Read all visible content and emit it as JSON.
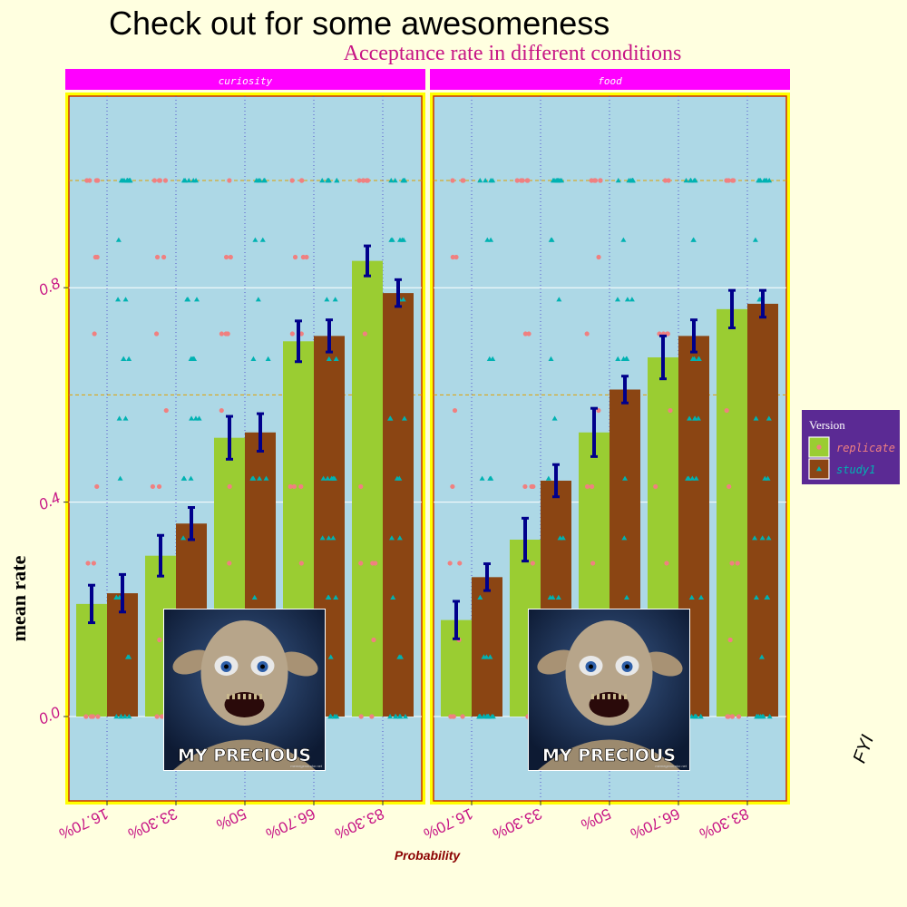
{
  "chart_data": {
    "type": "bar",
    "title": "Check out for some awesomeness",
    "subtitle": "Acceptance rate in different conditions",
    "xlabel": "Probability",
    "ylabel": "mean rate",
    "caption": "FYI",
    "categories": [
      "16.70%",
      "33.30%",
      "50%",
      "66.70%",
      "83.30%"
    ],
    "ylim": [
      -0.15,
      1.15
    ],
    "yticks": [
      0.0,
      0.4,
      0.8
    ],
    "ytick_labels": [
      "0.0",
      "0.4",
      "0.8"
    ],
    "legend": {
      "title": "Version",
      "position": "right",
      "entries": [
        "replicate",
        "study1"
      ]
    },
    "colors": {
      "replicate_bar": "#9ACD32",
      "study1_bar": "#8B4513",
      "replicate_point": "#F08080",
      "study1_point": "#00B2B2",
      "errorbar": "#00008B",
      "panel_bg": "#ADD8E6",
      "strip_bg": "#FF00FF",
      "page_bg": "#FFFFE0",
      "title_text": "#000000",
      "subtitle_text": "#C71585",
      "axis_text": "#C71585",
      "xlabel_text": "#8B0000",
      "legend_bg": "#5B2A94"
    },
    "facets": [
      {
        "label": "curiosity",
        "series": [
          {
            "name": "replicate",
            "values": [
              0.21,
              0.3,
              0.52,
              0.7,
              0.85
            ],
            "err": [
              0.035,
              0.038,
              0.04,
              0.038,
              0.028
            ]
          },
          {
            "name": "study1",
            "values": [
              0.23,
              0.36,
              0.53,
              0.71,
              0.79
            ],
            "err": [
              0.035,
              0.03,
              0.035,
              0.03,
              0.025
            ]
          }
        ]
      },
      {
        "label": "food",
        "series": [
          {
            "name": "replicate",
            "values": [
              0.18,
              0.33,
              0.53,
              0.67,
              0.76
            ],
            "err": [
              0.035,
              0.04,
              0.045,
              0.04,
              0.035
            ]
          },
          {
            "name": "study1",
            "values": [
              0.26,
              0.44,
              0.61,
              0.71,
              0.77
            ],
            "err": [
              0.025,
              0.03,
              0.025,
              0.03,
              0.025
            ]
          }
        ]
      }
    ],
    "raw_points": {
      "replicate_levels": [
        0.0,
        0.143,
        0.286,
        0.429,
        0.571,
        0.714,
        0.857,
        1.0
      ],
      "study1_levels": [
        0.0,
        0.111,
        0.222,
        0.333,
        0.444,
        0.556,
        0.667,
        0.778,
        0.889,
        1.0
      ]
    },
    "meme": {
      "label": "MY PRECIOUS",
      "watermark": "memegenerator.net"
    }
  }
}
